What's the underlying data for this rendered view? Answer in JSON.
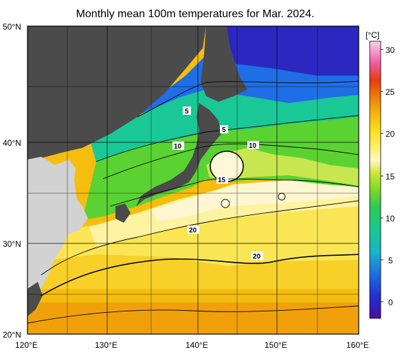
{
  "title": "Monthly mean 100m temperatures for Mar. 2024.",
  "colorbar": {
    "unit": "[°C]",
    "ticks": [
      "30",
      "25",
      "20",
      "15",
      "10",
      "5",
      "0"
    ],
    "colors": [
      "#4b0ea0",
      "#2020c8",
      "#1f4ee6",
      "#1f8ce0",
      "#19b4c8",
      "#19c896",
      "#2dc85a",
      "#5ad232",
      "#96dc28",
      "#c8e632",
      "#e6f050",
      "#f5f07a",
      "#fff5c8",
      "#fff064",
      "#fadc1e",
      "#f5be0f",
      "#f0a00a",
      "#eb7d0a",
      "#e65a0f",
      "#e63c14",
      "#eb2864",
      "#f05aa0",
      "#f596cd",
      "#fad2eb"
    ]
  },
  "axes": {
    "lat_labels": [
      "50°N",
      "40°N",
      "30°N",
      "20°N"
    ],
    "lon_labels": [
      "120°E",
      "130°E",
      "140°E",
      "150°E",
      "160°E"
    ]
  },
  "contour_labels": [
    "5",
    "5",
    "10",
    "10",
    "15",
    "20",
    "20"
  ],
  "colors": {
    "land": "#d2d2d2",
    "no_data": "#4b4b4b"
  }
}
